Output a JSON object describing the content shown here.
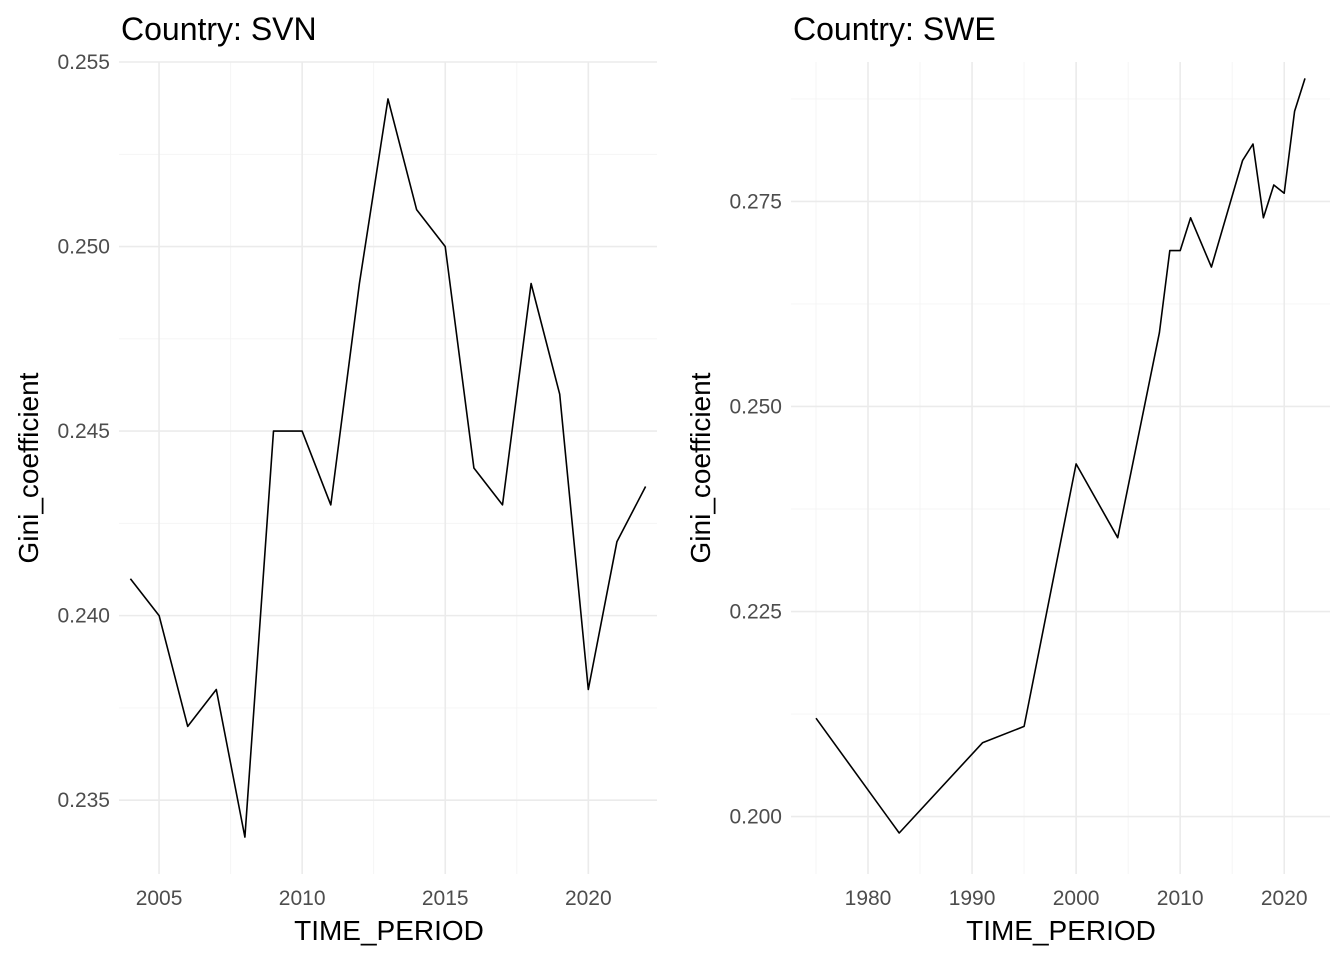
{
  "chart_data": [
    {
      "type": "line",
      "title": "Country: SVN",
      "xlabel": "TIME_PERIOD",
      "ylabel": "Gini_coefficient",
      "xlim": [
        2003.6,
        2022.4
      ],
      "ylim": [
        0.233,
        0.255
      ],
      "x_ticks": [
        2005,
        2010,
        2015,
        2020
      ],
      "x_tick_labels": [
        "2005",
        "2010",
        "2015",
        "2020"
      ],
      "y_ticks": [
        0.235,
        0.24,
        0.245,
        0.25,
        0.255
      ],
      "y_tick_labels": [
        "0.235",
        "0.240",
        "0.245",
        "0.250",
        "0.255"
      ],
      "grid": true,
      "legend": "none",
      "x": [
        2004,
        2005,
        2006,
        2007,
        2008,
        2009,
        2010,
        2011,
        2012,
        2013,
        2014,
        2015,
        2016,
        2017,
        2018,
        2019,
        2020,
        2021,
        2022
      ],
      "values": [
        0.241,
        0.24,
        0.237,
        0.238,
        0.234,
        0.245,
        0.245,
        0.243,
        0.249,
        0.254,
        0.251,
        0.25,
        0.244,
        0.243,
        0.249,
        0.246,
        0.238,
        0.242,
        0.2435
      ]
    },
    {
      "type": "line",
      "title": "Country: SWE",
      "xlabel": "TIME_PERIOD",
      "ylabel": "Gini_coefficient",
      "xlim": [
        1972.6,
        2024.4
      ],
      "ylim": [
        0.193,
        0.292
      ],
      "x_ticks": [
        1980,
        1990,
        2000,
        2010,
        2020
      ],
      "x_tick_labels": [
        "1980",
        "1990",
        "2000",
        "2010",
        "2020"
      ],
      "y_ticks": [
        0.2,
        0.225,
        0.25,
        0.275
      ],
      "y_tick_labels": [
        "0.200",
        "0.225",
        "0.250",
        "0.275"
      ],
      "grid": true,
      "legend": "none",
      "x": [
        1975,
        1983,
        1991,
        1995,
        2000,
        2004,
        2008,
        2009,
        2010,
        2011,
        2013,
        2016,
        2017,
        2018,
        2019,
        2020,
        2021,
        2022
      ],
      "values": [
        0.212,
        0.198,
        0.209,
        0.211,
        0.243,
        0.234,
        0.259,
        0.269,
        0.269,
        0.273,
        0.267,
        0.28,
        0.282,
        0.273,
        0.277,
        0.276,
        0.286,
        0.29
      ]
    }
  ]
}
